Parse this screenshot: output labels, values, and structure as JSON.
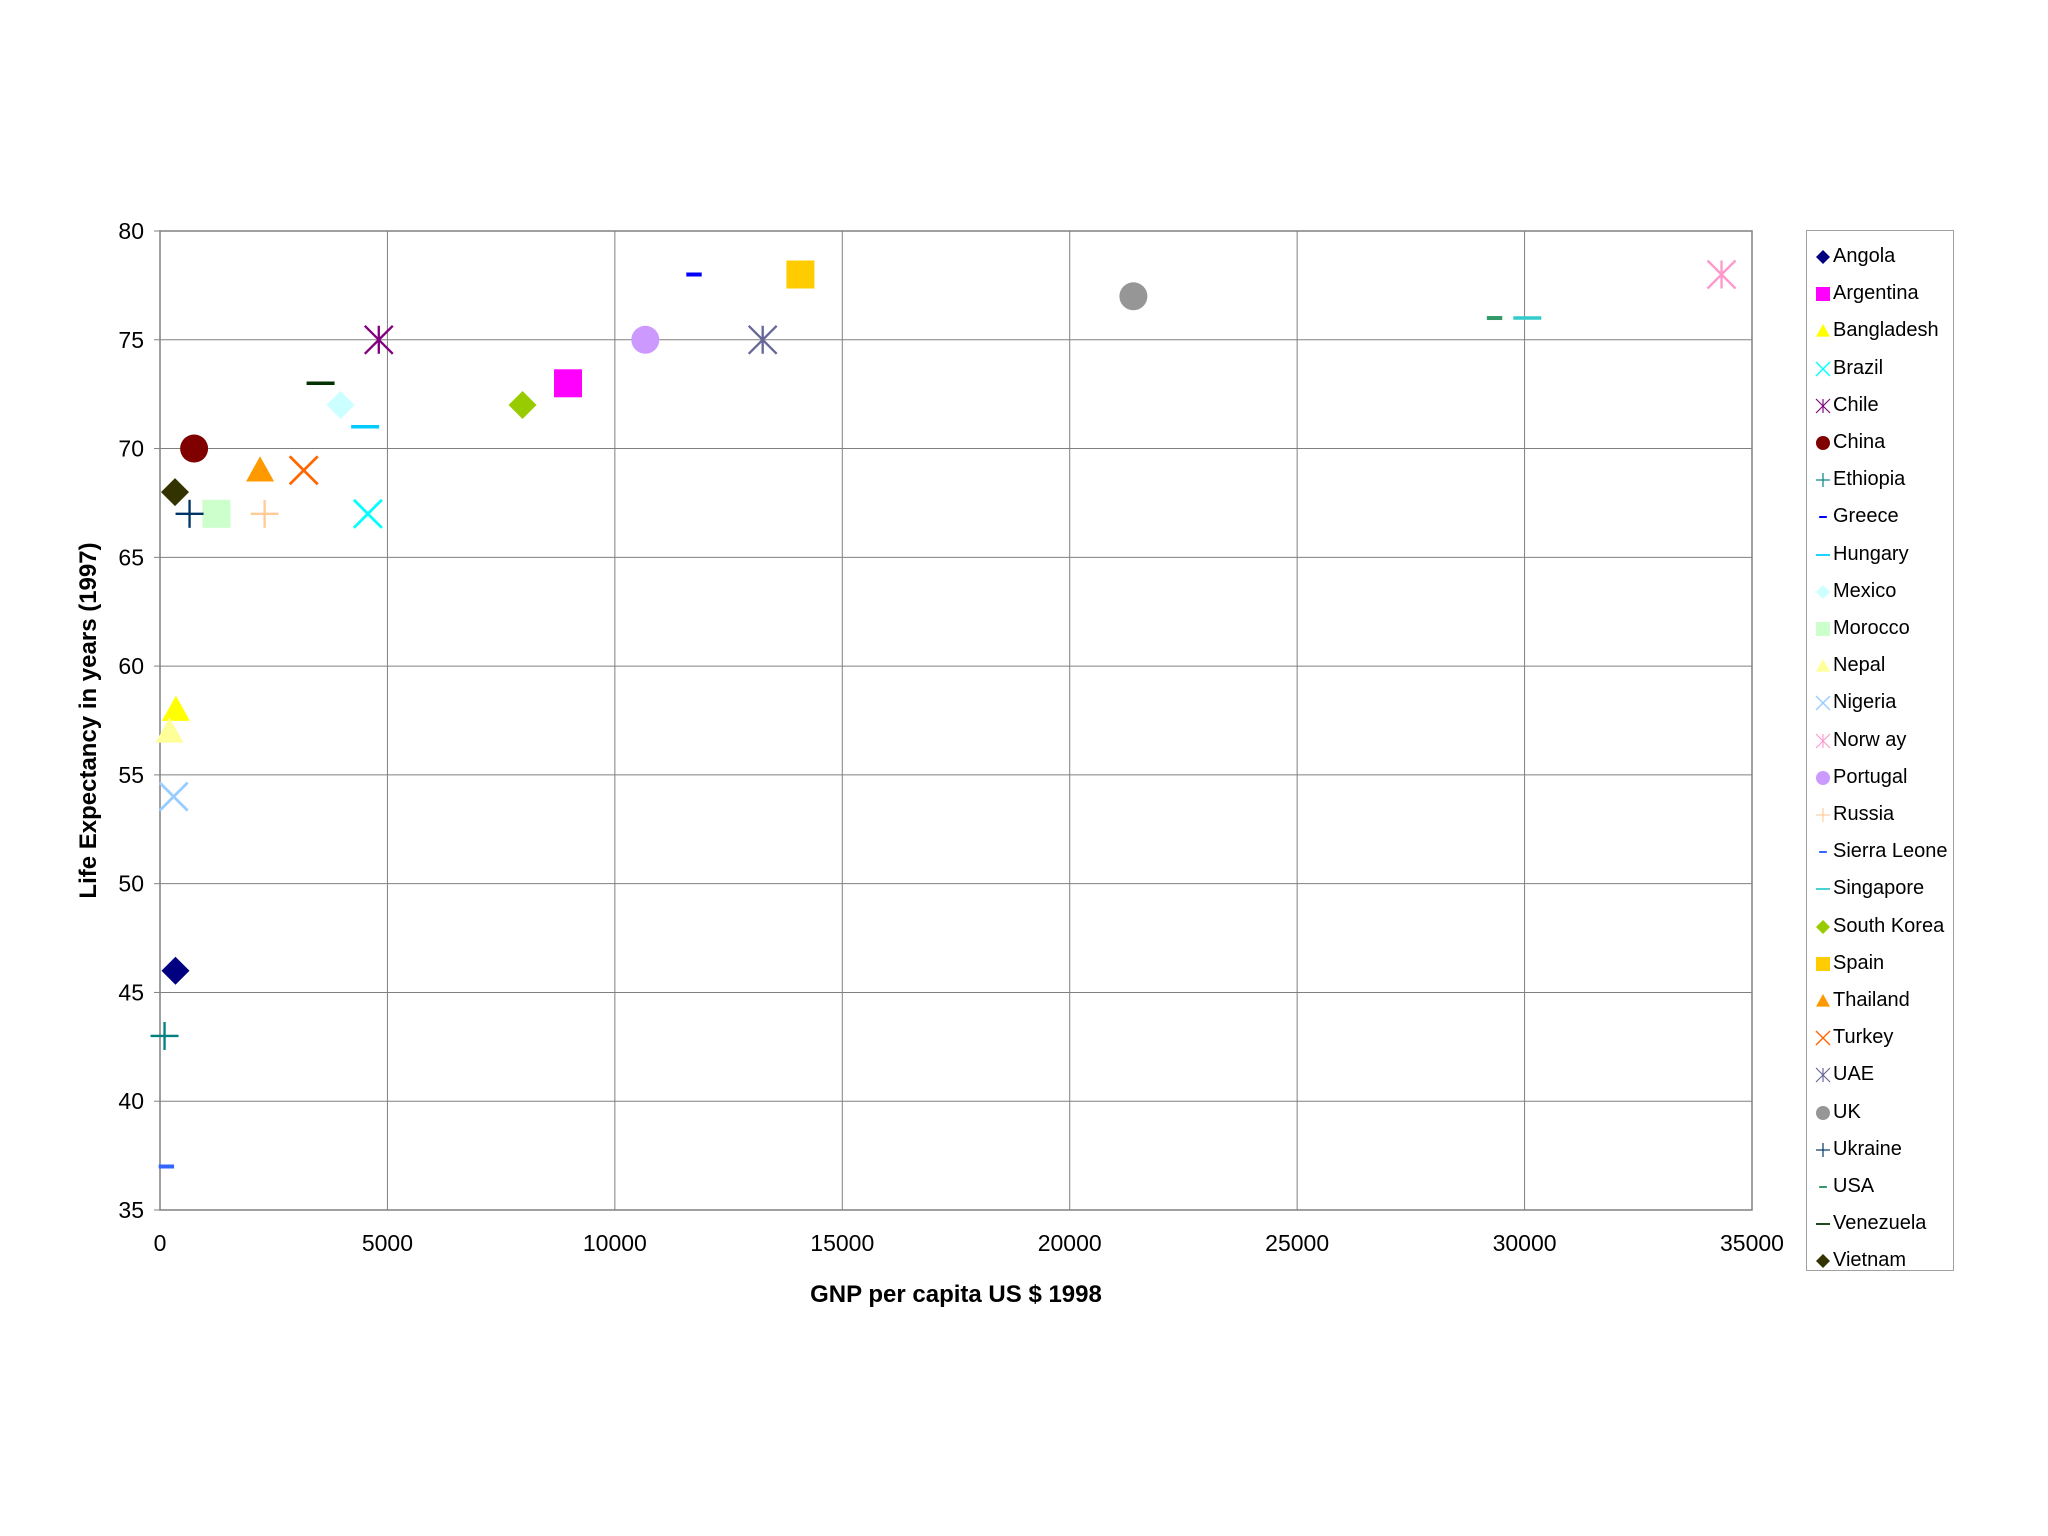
{
  "chart_data": {
    "type": "scatter",
    "xlabel": "GNP per capita US $ 1998",
    "ylabel": "Life Expectancy in years (1997)",
    "xlim": [
      0,
      35000
    ],
    "ylim": [
      35,
      80
    ],
    "xticks": [
      "0",
      "5000",
      "10000",
      "15000",
      "20000",
      "25000",
      "30000",
      "35000"
    ],
    "yticks": [
      "35",
      "40",
      "45",
      "50",
      "55",
      "60",
      "65",
      "70",
      "75",
      "80"
    ],
    "grid": true,
    "legend_position": "right",
    "series": [
      {
        "name": "Angola",
        "marker": "diamond",
        "color": "#000080",
        "x": 340,
        "y": 46
      },
      {
        "name": "Argentina",
        "marker": "square",
        "color": "#ff00ff",
        "x": 8970,
        "y": 73
      },
      {
        "name": "Bangladesh",
        "marker": "triangle",
        "color": "#ffff00",
        "x": 350,
        "y": 58
      },
      {
        "name": "Brazil",
        "marker": "x",
        "color": "#00ffff",
        "x": 4570,
        "y": 67
      },
      {
        "name": "Chile",
        "marker": "star",
        "color": "#800080",
        "x": 4810,
        "y": 75
      },
      {
        "name": "China",
        "marker": "circle",
        "color": "#800000",
        "x": 750,
        "y": 70
      },
      {
        "name": "Ethiopia",
        "marker": "plus",
        "color": "#008080",
        "x": 100,
        "y": 43
      },
      {
        "name": "Greece",
        "marker": "dash",
        "color": "#0000ff",
        "x": 11740,
        "y": 78
      },
      {
        "name": "Hungary",
        "marker": "line",
        "color": "#00ccff",
        "x": 4510,
        "y": 71
      },
      {
        "name": "Mexico",
        "marker": "diamond",
        "color": "#ccffff",
        "x": 3970,
        "y": 72
      },
      {
        "name": "Morocco",
        "marker": "square",
        "color": "#ccffcc",
        "x": 1240,
        "y": 67
      },
      {
        "name": "Nepal",
        "marker": "triangle",
        "color": "#ffff99",
        "x": 210,
        "y": 57
      },
      {
        "name": "Nigeria",
        "marker": "x",
        "color": "#99ccff",
        "x": 300,
        "y": 54
      },
      {
        "name": "Norw ay",
        "marker": "star",
        "color": "#ff99cc",
        "x": 34330,
        "y": 78
      },
      {
        "name": "Portugal",
        "marker": "circle",
        "color": "#cc99ff",
        "x": 10670,
        "y": 75
      },
      {
        "name": "Russia",
        "marker": "plus",
        "color": "#ffcc99",
        "x": 2300,
        "y": 67
      },
      {
        "name": "Sierra Leone",
        "marker": "dash",
        "color": "#3366ff",
        "x": 140,
        "y": 37
      },
      {
        "name": "Singapore",
        "marker": "line",
        "color": "#33cccc",
        "x": 30060,
        "y": 76
      },
      {
        "name": "South Korea",
        "marker": "diamond",
        "color": "#99cc00",
        "x": 7970,
        "y": 72
      },
      {
        "name": "Spain",
        "marker": "square",
        "color": "#ffcc00",
        "x": 14080,
        "y": 78
      },
      {
        "name": "Thailand",
        "marker": "triangle",
        "color": "#ff9900",
        "x": 2200,
        "y": 69
      },
      {
        "name": "Turkey",
        "marker": "x",
        "color": "#ff6600",
        "x": 3160,
        "y": 69
      },
      {
        "name": "UAE",
        "marker": "star",
        "color": "#666699",
        "x": 13250,
        "y": 75
      },
      {
        "name": "UK",
        "marker": "circle",
        "color": "#969696",
        "x": 21400,
        "y": 77
      },
      {
        "name": "Ukraine",
        "marker": "plus",
        "color": "#003366",
        "x": 650,
        "y": 67
      },
      {
        "name": "USA",
        "marker": "dash",
        "color": "#339966",
        "x": 29340,
        "y": 76
      },
      {
        "name": "Venezuela",
        "marker": "line",
        "color": "#003300",
        "x": 3530,
        "y": 73
      },
      {
        "name": "Vietnam",
        "marker": "diamond",
        "color": "#333300",
        "x": 330,
        "y": 68
      }
    ]
  }
}
